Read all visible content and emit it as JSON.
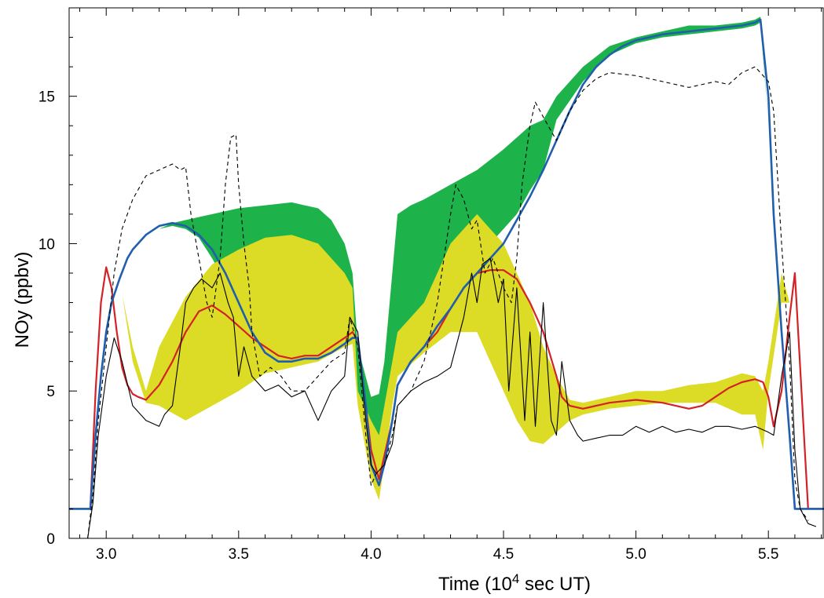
{
  "chart_data": {
    "type": "line",
    "title": "",
    "xlabel": "Time  (10",
    "xlabel_sup": "4",
    "xlabel_suffix": " sec UT)",
    "ylabel": "NOy  (ppbv)",
    "xlim": [
      2.86,
      5.71
    ],
    "ylim": [
      0,
      18
    ],
    "x_ticks": [
      3.0,
      3.5,
      4.0,
      4.5,
      5.0,
      5.5
    ],
    "x_tick_labels": [
      "3.0",
      "3.5",
      "4.0",
      "4.5",
      "5.0",
      "5.5"
    ],
    "y_ticks": [
      0,
      5,
      10,
      15
    ],
    "y_tick_labels": [
      "0",
      "5",
      "10",
      "15"
    ],
    "grid": false,
    "legend": "none",
    "bands": [
      {
        "color": "#1db34a",
        "x": [
          2.86,
          2.95,
          2.98,
          3.0,
          3.05,
          3.1,
          3.15,
          3.2,
          3.25,
          3.3,
          3.35,
          3.4,
          3.45,
          3.5,
          3.6,
          3.7,
          3.8,
          3.85,
          3.9,
          3.93,
          3.95,
          4.0,
          4.03,
          4.05,
          4.08,
          4.1,
          4.15,
          4.2,
          4.3,
          4.4,
          4.5,
          4.55,
          4.6,
          4.65,
          4.7,
          4.8,
          4.9,
          5.0,
          5.1,
          5.2,
          5.3,
          5.4,
          5.45,
          5.47,
          5.5,
          5.55,
          5.58,
          5.6,
          5.65,
          5.71
        ],
        "upper": [
          1.0,
          1.0,
          4.5,
          6.5,
          8.5,
          9.5,
          10.0,
          10.5,
          10.7,
          10.8,
          10.9,
          11.0,
          11.1,
          11.2,
          11.3,
          11.4,
          11.2,
          10.8,
          10.0,
          9.0,
          6.5,
          4.8,
          4.9,
          6.0,
          9.0,
          11.0,
          11.3,
          11.5,
          12.0,
          12.5,
          13.2,
          13.6,
          14.0,
          14.2,
          15.0,
          16.0,
          16.7,
          17.0,
          17.2,
          17.4,
          17.4,
          17.5,
          17.6,
          17.7,
          14.0,
          8.0,
          4.0,
          1.0,
          1.0,
          1.0
        ],
        "lower": [
          1.0,
          1.0,
          4.5,
          6.5,
          8.5,
          9.5,
          10.0,
          10.5,
          10.6,
          10.5,
          10.2,
          9.5,
          8.7,
          7.8,
          6.3,
          6.1,
          6.3,
          6.6,
          6.9,
          7.0,
          5.0,
          2.5,
          2.0,
          3.0,
          5.5,
          6.0,
          6.5,
          7.5,
          8.5,
          9.5,
          10.5,
          11.0,
          11.8,
          12.5,
          14.2,
          15.5,
          16.4,
          16.8,
          17.0,
          17.1,
          17.2,
          17.3,
          17.4,
          17.5,
          14.0,
          8.0,
          4.0,
          1.0,
          1.0,
          1.0
        ]
      },
      {
        "color": "#dcdb25",
        "x": [
          2.86,
          2.95,
          2.98,
          3.0,
          3.03,
          3.06,
          3.1,
          3.15,
          3.2,
          3.3,
          3.4,
          3.5,
          3.6,
          3.7,
          3.8,
          3.9,
          3.93,
          3.95,
          4.0,
          4.03,
          4.05,
          4.08,
          4.1,
          4.2,
          4.3,
          4.4,
          4.45,
          4.5,
          4.55,
          4.6,
          4.65,
          4.7,
          4.75,
          4.8,
          4.9,
          5.0,
          5.1,
          5.2,
          5.3,
          5.4,
          5.45,
          5.48,
          5.5,
          5.55,
          5.58,
          5.6,
          5.65,
          5.71
        ],
        "upper": [
          1.0,
          1.0,
          7.0,
          8.5,
          9.0,
          8.3,
          6.5,
          5.0,
          6.5,
          8.2,
          9.3,
          9.8,
          10.2,
          10.3,
          10.0,
          9.0,
          8.5,
          5.0,
          4.0,
          3.5,
          4.5,
          6.0,
          7.0,
          8.0,
          10.0,
          11.0,
          10.5,
          10.0,
          9.0,
          8.0,
          6.5,
          5.5,
          4.7,
          4.6,
          4.8,
          5.0,
          5.0,
          5.2,
          5.3,
          5.6,
          5.5,
          5.0,
          6.0,
          9.0,
          8.0,
          1.0,
          1.0,
          1.0
        ],
        "lower": [
          1.0,
          1.0,
          7.0,
          8.5,
          9.0,
          8.3,
          6.0,
          4.6,
          4.5,
          4.0,
          4.5,
          5.0,
          5.6,
          5.8,
          6.0,
          6.5,
          6.6,
          4.5,
          2.0,
          1.3,
          2.5,
          4.5,
          5.5,
          6.3,
          7.0,
          7.0,
          6.0,
          5.0,
          4.0,
          3.3,
          3.2,
          3.6,
          4.0,
          4.2,
          4.4,
          4.5,
          4.6,
          4.6,
          4.6,
          4.2,
          4.2,
          3.0,
          5.0,
          8.0,
          8.0,
          1.0,
          1.0,
          1.0
        ]
      }
    ],
    "series": [
      {
        "color": "#d32228",
        "width": 2.2,
        "dash": "",
        "x": [
          2.86,
          2.94,
          2.96,
          2.98,
          3.0,
          3.02,
          3.04,
          3.06,
          3.08,
          3.1,
          3.12,
          3.15,
          3.2,
          3.25,
          3.3,
          3.35,
          3.4,
          3.45,
          3.5,
          3.55,
          3.6,
          3.65,
          3.7,
          3.75,
          3.8,
          3.85,
          3.9,
          3.93,
          3.95,
          3.98,
          4.0,
          4.03,
          4.05,
          4.08,
          4.1,
          4.15,
          4.2,
          4.25,
          4.3,
          4.35,
          4.4,
          4.45,
          4.5,
          4.55,
          4.6,
          4.65,
          4.7,
          4.72,
          4.75,
          4.8,
          4.85,
          4.9,
          5.0,
          5.1,
          5.2,
          5.25,
          5.3,
          5.35,
          5.4,
          5.45,
          5.48,
          5.5,
          5.52,
          5.55,
          5.58,
          5.6,
          5.65,
          5.71
        ],
        "y": [
          1.0,
          1.0,
          5.0,
          8.0,
          9.2,
          8.5,
          7.0,
          5.8,
          5.2,
          4.9,
          4.8,
          4.7,
          5.2,
          6.0,
          7.0,
          7.7,
          7.9,
          7.6,
          7.2,
          6.8,
          6.5,
          6.2,
          6.1,
          6.2,
          6.2,
          6.5,
          6.8,
          7.0,
          6.7,
          4.5,
          3.0,
          2.0,
          2.8,
          4.0,
          5.2,
          6.0,
          6.5,
          7.0,
          7.8,
          8.5,
          9.0,
          9.1,
          9.1,
          8.8,
          8.0,
          7.0,
          5.5,
          4.8,
          4.5,
          4.4,
          4.5,
          4.6,
          4.7,
          4.6,
          4.4,
          4.5,
          4.8,
          5.1,
          5.3,
          5.4,
          5.3,
          4.8,
          3.8,
          5.0,
          7.5,
          9.0,
          1.0,
          1.0
        ]
      },
      {
        "color": "#1f5fae",
        "width": 2.6,
        "dash": "",
        "x": [
          2.86,
          2.94,
          2.96,
          2.98,
          3.0,
          3.02,
          3.05,
          3.08,
          3.1,
          3.15,
          3.2,
          3.25,
          3.3,
          3.35,
          3.4,
          3.45,
          3.5,
          3.55,
          3.6,
          3.65,
          3.7,
          3.75,
          3.8,
          3.85,
          3.9,
          3.93,
          3.95,
          3.98,
          4.0,
          4.03,
          4.05,
          4.08,
          4.1,
          4.15,
          4.2,
          4.25,
          4.3,
          4.35,
          4.4,
          4.45,
          4.5,
          4.55,
          4.6,
          4.65,
          4.7,
          4.75,
          4.8,
          4.85,
          4.9,
          4.95,
          5.0,
          5.05,
          5.1,
          5.2,
          5.3,
          5.4,
          5.45,
          5.47,
          5.5,
          5.52,
          5.55,
          5.58,
          5.6,
          5.65,
          5.71
        ],
        "y": [
          1.0,
          1.0,
          3.5,
          5.5,
          7.0,
          8.0,
          8.8,
          9.5,
          9.8,
          10.3,
          10.6,
          10.7,
          10.6,
          10.3,
          9.8,
          9.0,
          8.0,
          7.0,
          6.3,
          6.0,
          6.0,
          6.1,
          6.1,
          6.3,
          6.6,
          6.8,
          6.8,
          4.5,
          2.5,
          1.8,
          2.5,
          4.0,
          5.2,
          6.0,
          6.5,
          7.2,
          7.8,
          8.5,
          9.0,
          9.5,
          10.0,
          10.8,
          11.6,
          12.5,
          13.5,
          14.5,
          15.4,
          16.0,
          16.4,
          16.7,
          16.9,
          17.0,
          17.1,
          17.2,
          17.3,
          17.4,
          17.5,
          17.6,
          15.0,
          11.0,
          7.0,
          3.5,
          1.0,
          1.0,
          1.0
        ]
      },
      {
        "color": "#000000",
        "width": 1.1,
        "dash": "",
        "x": [
          2.93,
          2.95,
          2.97,
          3.0,
          3.03,
          3.06,
          3.1,
          3.15,
          3.2,
          3.22,
          3.25,
          3.28,
          3.3,
          3.33,
          3.36,
          3.4,
          3.43,
          3.46,
          3.48,
          3.5,
          3.52,
          3.55,
          3.6,
          3.65,
          3.7,
          3.75,
          3.8,
          3.85,
          3.9,
          3.92,
          3.95,
          3.98,
          4.0,
          4.02,
          4.05,
          4.08,
          4.1,
          4.15,
          4.2,
          4.25,
          4.3,
          4.35,
          4.38,
          4.4,
          4.42,
          4.45,
          4.48,
          4.5,
          4.52,
          4.55,
          4.58,
          4.6,
          4.62,
          4.65,
          4.68,
          4.7,
          4.72,
          4.75,
          4.78,
          4.8,
          4.85,
          4.9,
          4.95,
          5.0,
          5.05,
          5.1,
          5.15,
          5.2,
          5.25,
          5.3,
          5.35,
          5.4,
          5.45,
          5.5,
          5.52,
          5.55,
          5.58,
          5.6,
          5.62,
          5.65,
          5.68
        ],
        "y": [
          0.0,
          1.2,
          3.5,
          5.5,
          6.8,
          6.0,
          4.5,
          4.0,
          3.8,
          4.2,
          4.5,
          6.5,
          8.0,
          8.5,
          8.8,
          8.5,
          9.0,
          8.0,
          7.5,
          5.5,
          6.5,
          5.5,
          5.0,
          5.2,
          4.8,
          5.0,
          4.0,
          5.0,
          5.5,
          7.5,
          7.0,
          4.0,
          2.5,
          2.2,
          2.5,
          3.2,
          4.5,
          5.0,
          5.3,
          5.5,
          5.8,
          7.5,
          9.0,
          8.0,
          9.3,
          9.5,
          8.0,
          8.8,
          5.0,
          8.5,
          4.0,
          7.0,
          3.8,
          8.0,
          4.0,
          3.5,
          6.0,
          4.0,
          3.5,
          3.3,
          3.4,
          3.5,
          3.5,
          3.8,
          3.6,
          3.8,
          3.6,
          3.7,
          3.6,
          3.8,
          3.8,
          3.7,
          3.8,
          3.6,
          3.5,
          5.5,
          7.0,
          3.0,
          1.0,
          0.5,
          0.4
        ]
      },
      {
        "color": "#000000",
        "width": 1.1,
        "dash": "5,4",
        "x": [
          2.93,
          2.95,
          2.97,
          3.0,
          3.03,
          3.06,
          3.1,
          3.15,
          3.2,
          3.25,
          3.28,
          3.3,
          3.32,
          3.35,
          3.38,
          3.4,
          3.43,
          3.45,
          3.47,
          3.49,
          3.5,
          3.52,
          3.54,
          3.55,
          3.58,
          3.62,
          3.66,
          3.7,
          3.75,
          3.8,
          3.85,
          3.9,
          3.92,
          3.95,
          3.98,
          4.0,
          4.02,
          4.05,
          4.08,
          4.1,
          4.15,
          4.2,
          4.25,
          4.3,
          4.32,
          4.35,
          4.38,
          4.4,
          4.43,
          4.46,
          4.5,
          4.53,
          4.55,
          4.57,
          4.6,
          4.62,
          4.65,
          4.7,
          4.75,
          4.8,
          4.85,
          4.9,
          5.0,
          5.1,
          5.2,
          5.3,
          5.35,
          5.4,
          5.45,
          5.5,
          5.52,
          5.55,
          5.58,
          5.6,
          5.62,
          5.65
        ],
        "y": [
          0.0,
          1.5,
          4.0,
          6.5,
          9.0,
          10.5,
          11.5,
          12.3,
          12.5,
          12.7,
          12.5,
          12.6,
          11.0,
          9.5,
          8.0,
          7.5,
          9.5,
          12.0,
          13.6,
          13.7,
          12.0,
          10.0,
          8.5,
          7.0,
          5.5,
          5.8,
          5.5,
          5.0,
          5.0,
          5.5,
          6.0,
          6.3,
          7.5,
          6.5,
          3.5,
          1.8,
          2.2,
          2.5,
          3.5,
          4.5,
          5.0,
          6.0,
          8.0,
          11.0,
          12.0,
          11.5,
          10.5,
          10.8,
          9.0,
          9.5,
          8.5,
          8.0,
          9.5,
          12.0,
          14.0,
          14.8,
          14.3,
          13.5,
          14.5,
          15.2,
          15.6,
          15.8,
          15.7,
          15.5,
          15.3,
          15.5,
          15.4,
          15.8,
          16.0,
          15.5,
          14.5,
          10.0,
          6.0,
          2.0,
          1.0,
          0.6
        ]
      }
    ]
  }
}
